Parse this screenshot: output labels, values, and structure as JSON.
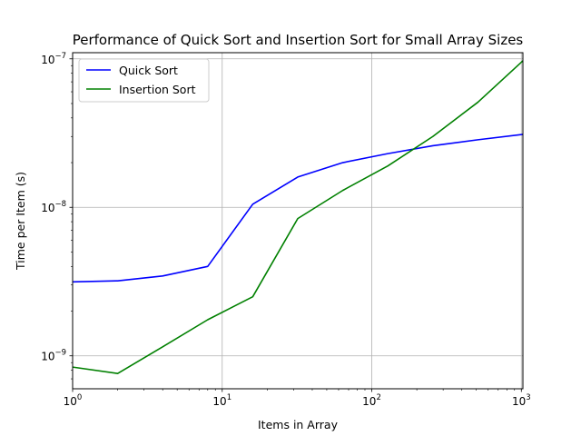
{
  "chart_data": {
    "type": "line",
    "title": "Performance of Quick Sort and Insertion Sort for Small Array Sizes",
    "xlabel": "Items in Array",
    "ylabel": "Time per Item (s)",
    "xscale": "log",
    "yscale": "log",
    "xlim": [
      1,
      1024
    ],
    "ylim": [
      6e-10,
      1.1e-07
    ],
    "grid": true,
    "legend_position": "top-left",
    "x_ticks": [
      {
        "value": 1,
        "base": "10",
        "exp": "0"
      },
      {
        "value": 10,
        "base": "10",
        "exp": "1"
      },
      {
        "value": 100,
        "base": "10",
        "exp": "2"
      },
      {
        "value": 1000,
        "base": "10",
        "exp": "3"
      }
    ],
    "y_ticks": [
      {
        "value": 1e-09,
        "base": "10",
        "exp": "−9"
      },
      {
        "value": 1e-08,
        "base": "10",
        "exp": "−8"
      },
      {
        "value": 1e-07,
        "base": "10",
        "exp": "−7"
      }
    ],
    "x": [
      1,
      2,
      4,
      8,
      16,
      32,
      64,
      128,
      256,
      512,
      1024
    ],
    "series": [
      {
        "name": "Quick Sort",
        "color": "#0000ff",
        "values": [
          3.15e-09,
          3.2e-09,
          3.45e-09,
          4e-09,
          1.05e-08,
          1.6e-08,
          2e-08,
          2.3e-08,
          2.6e-08,
          2.85e-08,
          3.1e-08
        ]
      },
      {
        "name": "Insertion Sort",
        "color": "#008000",
        "values": [
          8.4e-10,
          7.6e-10,
          1.15e-09,
          1.75e-09,
          2.5e-09,
          8.4e-09,
          1.3e-08,
          1.9e-08,
          3e-08,
          5.1e-08,
          9.7e-08
        ]
      }
    ]
  }
}
